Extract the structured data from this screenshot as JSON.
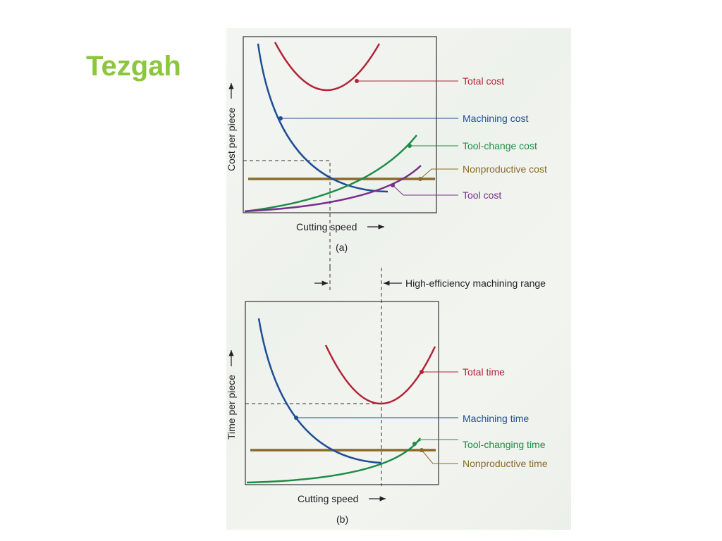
{
  "slide": {
    "title": "Tezgah"
  },
  "colors": {
    "title": "#8cc63f",
    "total": "#b32437",
    "machining": "#1f4e96",
    "tool_change": "#1e8c45",
    "nonproductive": "#8b6a2a",
    "tool": "#7b2d8e"
  },
  "range_label": "High-efficiency machining range",
  "panel_a": {
    "caption": "(a)",
    "ylabel": "Cost per piece",
    "xlabel": "Cutting speed",
    "labels": {
      "total": "Total cost",
      "machining": "Machining cost",
      "tool_change": "Tool-change cost",
      "nonproductive": "Nonproductive cost",
      "tool": "Tool cost"
    }
  },
  "panel_b": {
    "caption": "(b)",
    "ylabel": "Time per piece",
    "xlabel": "Cutting speed",
    "labels": {
      "total": "Total time",
      "machining": "Machining time",
      "tool_change": "Tool-changing time",
      "nonproductive": "Nonproductive time"
    }
  }
}
